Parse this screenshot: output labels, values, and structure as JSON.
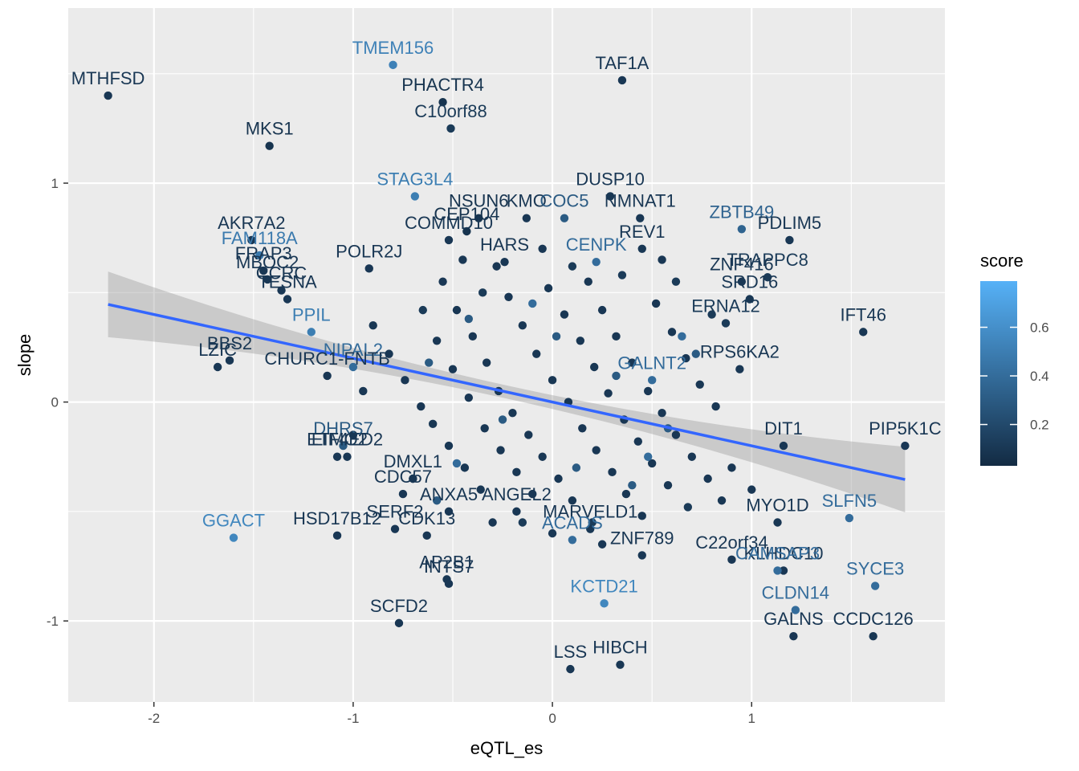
{
  "chart_data": {
    "type": "scatter",
    "xlabel": "eQTL_es",
    "ylabel": "slope",
    "xlim": [
      -2.43,
      1.97
    ],
    "ylim": [
      -1.37,
      1.8
    ],
    "x_ticks": [
      -2,
      -1,
      0,
      1
    ],
    "y_ticks": [
      -1,
      0,
      1
    ],
    "x_tick_labels": [
      "-2",
      "-1",
      "0",
      "1"
    ],
    "y_tick_labels": [
      "-1",
      "0",
      "1"
    ],
    "legend": {
      "title": "score",
      "placement": "right",
      "ticks": [
        0.2,
        0.4,
        0.6
      ],
      "tick_labels": [
        "0.2",
        "0.4",
        "0.6"
      ],
      "range": [
        0.03,
        0.79
      ],
      "low_color": "#132b43",
      "high_color": "#56b1f7"
    },
    "regression": {
      "x_range": [
        -2.23,
        1.77
      ],
      "intercept": 0.0,
      "slope": -0.2,
      "band_halfwidth_ends": 0.15,
      "band_halfwidth_center": 0.03,
      "line_color": "#3366ff",
      "band_color": "#999999"
    },
    "grid": true,
    "panel_background": "#ebebeb",
    "labeled_points": [
      {
        "label": "MTHFSD",
        "x": -2.23,
        "y": 1.4,
        "score": 0.1
      },
      {
        "label": "TMEM156",
        "x": -0.8,
        "y": 1.54,
        "score": 0.52
      },
      {
        "label": "TAF1A",
        "x": 0.35,
        "y": 1.47,
        "score": 0.1
      },
      {
        "label": "PHACTR4",
        "x": -0.55,
        "y": 1.37,
        "score": 0.08
      },
      {
        "label": "C10orf88",
        "x": -0.51,
        "y": 1.25,
        "score": 0.12
      },
      {
        "label": "MKS1",
        "x": -1.42,
        "y": 1.17,
        "score": 0.08
      },
      {
        "label": "STAG3L4",
        "x": -0.69,
        "y": 0.94,
        "score": 0.5
      },
      {
        "label": "DUSP10",
        "x": 0.29,
        "y": 0.94,
        "score": 0.1
      },
      {
        "label": "NMNAT1",
        "x": 0.44,
        "y": 0.84,
        "score": 0.1
      },
      {
        "label": "NSUN6",
        "x": -0.37,
        "y": 0.84,
        "score": 0.08
      },
      {
        "label": "KMO",
        "x": -0.13,
        "y": 0.84,
        "score": 0.1
      },
      {
        "label": "COC5",
        "x": 0.06,
        "y": 0.84,
        "score": 0.3
      },
      {
        "label": "ZBTB49",
        "x": 0.95,
        "y": 0.79,
        "score": 0.35
      },
      {
        "label": "PDLIM5",
        "x": 1.19,
        "y": 0.74,
        "score": 0.1
      },
      {
        "label": "AKR7A2",
        "x": -1.51,
        "y": 0.74,
        "score": 0.1
      },
      {
        "label": "FAM118A",
        "x": -1.47,
        "y": 0.67,
        "score": 0.48
      },
      {
        "label": "CEP104",
        "x": -0.43,
        "y": 0.78,
        "score": 0.08
      },
      {
        "label": "REV1",
        "x": 0.45,
        "y": 0.7,
        "score": 0.1
      },
      {
        "label": "COMMD10",
        "x": -0.52,
        "y": 0.74,
        "score": 0.1
      },
      {
        "label": "POLR2J",
        "x": -0.92,
        "y": 0.61,
        "score": 0.1
      },
      {
        "label": "CENPK",
        "x": 0.22,
        "y": 0.64,
        "score": 0.4
      },
      {
        "label": "HARS",
        "x": -0.24,
        "y": 0.64,
        "score": 0.1
      },
      {
        "label": "TRAPPC8",
        "x": 1.08,
        "y": 0.57,
        "score": 0.12
      },
      {
        "label": "ZNF416",
        "x": 0.95,
        "y": 0.55,
        "score": 0.1
      },
      {
        "label": "FRAP3",
        "x": -1.45,
        "y": 0.6,
        "score": 0.1
      },
      {
        "label": "MBOC2",
        "x": -1.43,
        "y": 0.56,
        "score": 0.1
      },
      {
        "label": "CCRC",
        "x": -1.36,
        "y": 0.51,
        "score": 0.1
      },
      {
        "label": "TESNA",
        "x": -1.33,
        "y": 0.47,
        "score": 0.1
      },
      {
        "label": "PPIL",
        "x": -1.21,
        "y": 0.32,
        "score": 0.5
      },
      {
        "label": "SRD16",
        "x": 0.99,
        "y": 0.47,
        "score": 0.1
      },
      {
        "label": "IFT46",
        "x": 1.56,
        "y": 0.32,
        "score": 0.1
      },
      {
        "label": "ERNA12",
        "x": 0.87,
        "y": 0.36,
        "score": 0.12
      },
      {
        "label": "RPS6KA2",
        "x": 0.94,
        "y": 0.15,
        "score": 0.1
      },
      {
        "label": "BBS2",
        "x": -1.62,
        "y": 0.19,
        "score": 0.1
      },
      {
        "label": "LZIC",
        "x": -1.68,
        "y": 0.16,
        "score": 0.1
      },
      {
        "label": "NIPAL2",
        "x": -1.0,
        "y": 0.16,
        "score": 0.4
      },
      {
        "label": "CHURC1-FNTB",
        "x": -1.13,
        "y": 0.12,
        "score": 0.1
      },
      {
        "label": "GALNT2",
        "x": 0.5,
        "y": 0.1,
        "score": 0.4
      },
      {
        "label": "PIP5K1C",
        "x": 1.77,
        "y": -0.2,
        "score": 0.1
      },
      {
        "label": "DHRS7",
        "x": -1.05,
        "y": -0.2,
        "score": 0.3
      },
      {
        "label": "ETMO2",
        "x": -1.08,
        "y": -0.25,
        "score": 0.1
      },
      {
        "label": "EIF4ED2",
        "x": -1.03,
        "y": -0.25,
        "score": 0.1
      },
      {
        "label": "DIT1",
        "x": 1.16,
        "y": -0.2,
        "score": 0.1
      },
      {
        "label": "GGACT",
        "x": -1.6,
        "y": -0.62,
        "score": 0.55
      },
      {
        "label": "HSD17B12",
        "x": -1.08,
        "y": -0.61,
        "score": 0.1
      },
      {
        "label": "SLFN5",
        "x": 1.49,
        "y": -0.53,
        "score": 0.4
      },
      {
        "label": "MYO1D",
        "x": 1.13,
        "y": -0.55,
        "score": 0.1
      },
      {
        "label": "C22orf34",
        "x": 0.9,
        "y": -0.72,
        "score": 0.1
      },
      {
        "label": "ZNF789",
        "x": 0.45,
        "y": -0.7,
        "score": 0.1
      },
      {
        "label": "KLHDC10",
        "x": 1.16,
        "y": -0.77,
        "score": 0.1
      },
      {
        "label": "CAMSAP3",
        "x": 1.13,
        "y": -0.77,
        "score": 0.4
      },
      {
        "label": "SYCE3",
        "x": 1.62,
        "y": -0.84,
        "score": 0.4
      },
      {
        "label": "KCTD21",
        "x": 0.26,
        "y": -0.92,
        "score": 0.55
      },
      {
        "label": "CLDN14",
        "x": 1.22,
        "y": -0.95,
        "score": 0.4
      },
      {
        "label": "GALNS",
        "x": 1.21,
        "y": -1.07,
        "score": 0.1
      },
      {
        "label": "CCDC126",
        "x": 1.61,
        "y": -1.07,
        "score": 0.1
      },
      {
        "label": "SCFD2",
        "x": -0.77,
        "y": -1.01,
        "score": 0.1
      },
      {
        "label": "AP2B1",
        "x": -0.53,
        "y": -0.81,
        "score": 0.1
      },
      {
        "label": "INTS7",
        "x": -0.52,
        "y": -0.83,
        "score": 0.1
      },
      {
        "label": "CDK13",
        "x": -0.63,
        "y": -0.61,
        "score": 0.1
      },
      {
        "label": "MARVELD1",
        "x": 0.19,
        "y": -0.58,
        "score": 0.1
      },
      {
        "label": "ACADS",
        "x": 0.1,
        "y": -0.63,
        "score": 0.4
      },
      {
        "label": "LSS",
        "x": 0.09,
        "y": -1.22,
        "score": 0.1
      },
      {
        "label": "HIBCH",
        "x": 0.34,
        "y": -1.2,
        "score": 0.1
      },
      {
        "label": "SERF2",
        "x": -0.79,
        "y": -0.58,
        "score": 0.1
      },
      {
        "label": "ANXA5",
        "x": -0.52,
        "y": -0.5,
        "score": 0.1
      },
      {
        "label": "CDC57",
        "x": -0.75,
        "y": -0.42,
        "score": 0.1
      },
      {
        "label": "DMXL1",
        "x": -0.7,
        "y": -0.35,
        "score": 0.1
      },
      {
        "label": "ANGEL2",
        "x": -0.18,
        "y": -0.5,
        "score": 0.1
      }
    ],
    "unlabeled_points": [
      {
        "x": -0.55,
        "y": 0.55,
        "score": 0.1
      },
      {
        "x": -0.48,
        "y": 0.42,
        "score": 0.1
      },
      {
        "x": -0.4,
        "y": 0.3,
        "score": 0.1
      },
      {
        "x": -0.33,
        "y": 0.18,
        "score": 0.1
      },
      {
        "x": -0.27,
        "y": 0.05,
        "score": 0.1
      },
      {
        "x": -0.2,
        "y": -0.05,
        "score": 0.1
      },
      {
        "x": -0.12,
        "y": -0.15,
        "score": 0.1
      },
      {
        "x": -0.05,
        "y": -0.25,
        "score": 0.1
      },
      {
        "x": 0.03,
        "y": -0.35,
        "score": 0.1
      },
      {
        "x": 0.1,
        "y": -0.45,
        "score": 0.1
      },
      {
        "x": 0.18,
        "y": 0.55,
        "score": 0.1
      },
      {
        "x": 0.25,
        "y": 0.42,
        "score": 0.1
      },
      {
        "x": 0.32,
        "y": 0.3,
        "score": 0.1
      },
      {
        "x": 0.4,
        "y": 0.18,
        "score": 0.1
      },
      {
        "x": 0.48,
        "y": 0.05,
        "score": 0.1
      },
      {
        "x": 0.55,
        "y": -0.05,
        "score": 0.1
      },
      {
        "x": 0.62,
        "y": -0.15,
        "score": 0.1
      },
      {
        "x": 0.7,
        "y": -0.25,
        "score": 0.1
      },
      {
        "x": 0.78,
        "y": -0.35,
        "score": 0.1
      },
      {
        "x": 0.85,
        "y": -0.45,
        "score": 0.1
      },
      {
        "x": -0.6,
        "y": -0.1,
        "score": 0.1
      },
      {
        "x": -0.52,
        "y": -0.2,
        "score": 0.1
      },
      {
        "x": -0.44,
        "y": -0.3,
        "score": 0.1
      },
      {
        "x": -0.36,
        "y": -0.4,
        "score": 0.1
      },
      {
        "x": -0.28,
        "y": 0.62,
        "score": 0.1
      },
      {
        "x": -0.22,
        "y": 0.48,
        "score": 0.1
      },
      {
        "x": -0.15,
        "y": 0.35,
        "score": 0.1
      },
      {
        "x": -0.08,
        "y": 0.22,
        "score": 0.1
      },
      {
        "x": 0.0,
        "y": 0.1,
        "score": 0.1
      },
      {
        "x": 0.08,
        "y": 0.0,
        "score": 0.1
      },
      {
        "x": 0.15,
        "y": -0.12,
        "score": 0.1
      },
      {
        "x": 0.22,
        "y": -0.22,
        "score": 0.1
      },
      {
        "x": 0.3,
        "y": -0.32,
        "score": 0.1
      },
      {
        "x": 0.37,
        "y": -0.42,
        "score": 0.1
      },
      {
        "x": 0.45,
        "y": -0.52,
        "score": 0.1
      },
      {
        "x": 0.52,
        "y": 0.45,
        "score": 0.1
      },
      {
        "x": 0.6,
        "y": 0.32,
        "score": 0.1
      },
      {
        "x": 0.67,
        "y": 0.2,
        "score": 0.1
      },
      {
        "x": 0.74,
        "y": 0.08,
        "score": 0.1
      },
      {
        "x": 0.82,
        "y": -0.02,
        "score": 0.1
      },
      {
        "x": -0.9,
        "y": 0.35,
        "score": 0.1
      },
      {
        "x": -0.82,
        "y": 0.22,
        "score": 0.1
      },
      {
        "x": -0.74,
        "y": 0.1,
        "score": 0.1
      },
      {
        "x": -0.66,
        "y": -0.02,
        "score": 0.1
      },
      {
        "x": -0.58,
        "y": 0.28,
        "score": 0.1
      },
      {
        "x": -0.5,
        "y": 0.15,
        "score": 0.1
      },
      {
        "x": -0.42,
        "y": 0.02,
        "score": 0.1
      },
      {
        "x": -0.34,
        "y": -0.12,
        "score": 0.1
      },
      {
        "x": -0.26,
        "y": -0.22,
        "score": 0.1
      },
      {
        "x": -0.18,
        "y": -0.32,
        "score": 0.1
      },
      {
        "x": -0.1,
        "y": -0.42,
        "score": 0.1
      },
      {
        "x": -0.02,
        "y": 0.52,
        "score": 0.1
      },
      {
        "x": 0.06,
        "y": 0.4,
        "score": 0.1
      },
      {
        "x": 0.14,
        "y": 0.28,
        "score": 0.1
      },
      {
        "x": 0.21,
        "y": 0.16,
        "score": 0.1
      },
      {
        "x": 0.28,
        "y": 0.04,
        "score": 0.1
      },
      {
        "x": 0.36,
        "y": -0.08,
        "score": 0.1
      },
      {
        "x": 0.43,
        "y": -0.18,
        "score": 0.1
      },
      {
        "x": 0.5,
        "y": -0.28,
        "score": 0.1
      },
      {
        "x": 0.58,
        "y": -0.38,
        "score": 0.1
      },
      {
        "x": -0.65,
        "y": 0.42,
        "score": 0.12
      },
      {
        "x": -0.35,
        "y": 0.5,
        "score": 0.12
      },
      {
        "x": 0.1,
        "y": 0.62,
        "score": 0.12
      },
      {
        "x": 0.35,
        "y": 0.58,
        "score": 0.12
      },
      {
        "x": 0.62,
        "y": 0.55,
        "score": 0.12
      },
      {
        "x": -0.7,
        "y": -0.35,
        "score": 0.12
      },
      {
        "x": -0.15,
        "y": -0.55,
        "score": 0.12
      },
      {
        "x": 0.2,
        "y": -0.55,
        "score": 0.12
      },
      {
        "x": 0.68,
        "y": -0.48,
        "score": 0.12
      },
      {
        "x": 0.8,
        "y": 0.4,
        "score": 0.12
      },
      {
        "x": -0.95,
        "y": 0.05,
        "score": 0.1
      },
      {
        "x": -1.0,
        "y": -0.15,
        "score": 0.1
      },
      {
        "x": 0.9,
        "y": -0.3,
        "score": 0.1
      },
      {
        "x": 1.0,
        "y": -0.4,
        "score": 0.1
      },
      {
        "x": -0.45,
        "y": 0.65,
        "score": 0.1
      },
      {
        "x": 0.0,
        "y": -0.6,
        "score": 0.1
      },
      {
        "x": -0.3,
        "y": -0.55,
        "score": 0.1
      },
      {
        "x": 0.55,
        "y": 0.65,
        "score": 0.1
      },
      {
        "x": -0.05,
        "y": 0.7,
        "score": 0.1
      },
      {
        "x": 0.25,
        "y": -0.65,
        "score": 0.1
      },
      {
        "x": -0.58,
        "y": -0.45,
        "score": 0.3
      },
      {
        "x": -0.42,
        "y": 0.38,
        "score": 0.3
      },
      {
        "x": 0.02,
        "y": 0.3,
        "score": 0.3
      },
      {
        "x": 0.32,
        "y": 0.12,
        "score": 0.3
      },
      {
        "x": 0.58,
        "y": -0.12,
        "score": 0.3
      },
      {
        "x": 0.72,
        "y": 0.22,
        "score": 0.3
      },
      {
        "x": -0.25,
        "y": -0.08,
        "score": 0.3
      },
      {
        "x": 0.12,
        "y": -0.3,
        "score": 0.3
      },
      {
        "x": 0.4,
        "y": -0.38,
        "score": 0.3
      },
      {
        "x": -0.62,
        "y": 0.18,
        "score": 0.3
      },
      {
        "x": 0.65,
        "y": 0.3,
        "score": 0.4
      },
      {
        "x": -0.1,
        "y": 0.45,
        "score": 0.4
      },
      {
        "x": 0.48,
        "y": -0.25,
        "score": 0.4
      },
      {
        "x": -0.48,
        "y": -0.28,
        "score": 0.4
      }
    ]
  }
}
